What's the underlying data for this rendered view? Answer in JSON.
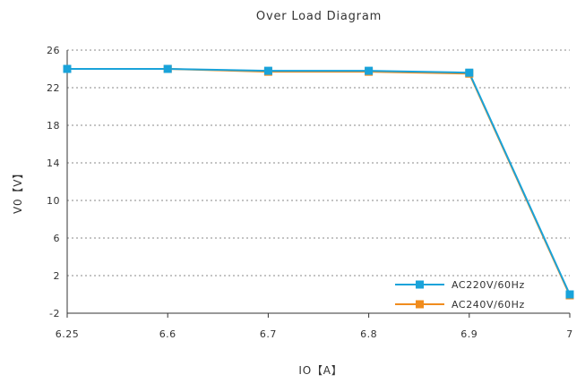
{
  "chart_data": {
    "type": "line",
    "title": "Over Load Diagram",
    "xlabel": "IO【A】",
    "ylabel": "V0【V】",
    "x": [
      6.25,
      6.6,
      6.7,
      6.8,
      6.9,
      7
    ],
    "x_tick_labels": [
      "6.25",
      "6.6",
      "6.7",
      "6.8",
      "6.9",
      "7"
    ],
    "y_ticks": [
      -2,
      2,
      6,
      10,
      14,
      18,
      22,
      26
    ],
    "ylim": [
      -2,
      26
    ],
    "grid": true,
    "legend_position": "bottom-right",
    "series": [
      {
        "name": "AC220V/60Hz",
        "color": "#19A3DA",
        "values": [
          24.0,
          24.0,
          23.8,
          23.8,
          23.6,
          0.0
        ]
      },
      {
        "name": "AC240V/60Hz",
        "color": "#F08C1E",
        "values": [
          24.0,
          24.0,
          23.7,
          23.7,
          23.5,
          -0.1
        ]
      }
    ]
  }
}
